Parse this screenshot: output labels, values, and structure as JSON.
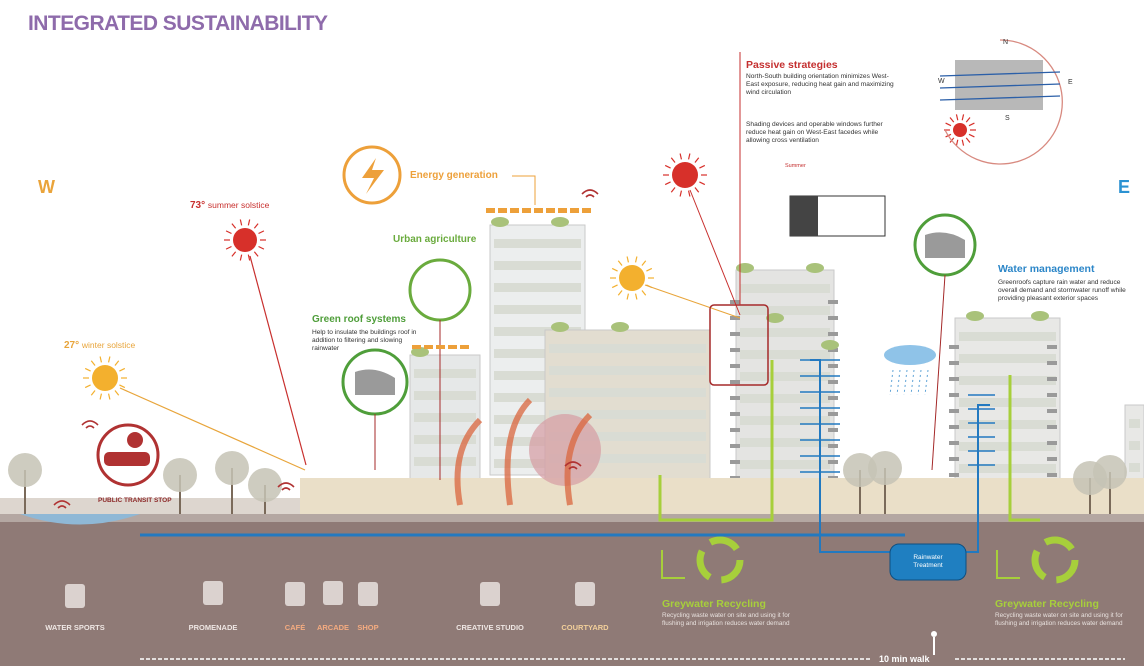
{
  "header": {
    "title": "INTEGRATED SUSTAINABILITY"
  },
  "orientation": {
    "west": "W",
    "east": "E"
  },
  "compass": {
    "north": "N",
    "west": "W",
    "east": "E",
    "south": "S"
  },
  "sun_angles": [
    {
      "degree": "73°",
      "label": "summer solstice"
    },
    {
      "degree": "27°",
      "label": "winter solstice"
    }
  ],
  "callouts": {
    "energy": {
      "title": "Energy generation"
    },
    "agriculture": {
      "title": "Urban agriculture"
    },
    "green_roof": {
      "title": "Green roof systems",
      "lines": [
        "Help to insulate the buildings roof in",
        "addition to filtering and slowing",
        "rainwater"
      ]
    },
    "passive": {
      "title": "Passive strategies",
      "paragraph_1": [
        "North-South building orientation minimizes West-",
        "East exposure, reducing heat gain and maximizing",
        "wind circulation"
      ],
      "paragraph_2": [
        "Shading devices and operable windows further",
        "reduce heat gain on West-East facedes while",
        "allowing cross ventilation"
      ],
      "section_label": "Summer"
    },
    "water": {
      "title": "Water management",
      "lines": [
        "Greenroofs capture rain water and reduce",
        "overall demand and stormwater runoff while",
        "providing pleasant exterior spaces"
      ]
    },
    "transit": {
      "title": "PUBLIC TRANSIT STOP"
    },
    "rainwater": {
      "lines": [
        "Rainwater",
        "Treatment"
      ]
    },
    "greywater": [
      {
        "title": "Greywater Recycling",
        "lines": [
          "Recycling waste water on site and using it for",
          "flushing and irrigation reduces water demand"
        ]
      },
      {
        "title": "Greywater Recycling",
        "lines": [
          "Recycling waste water on site and using it for",
          "flushing and irrigation reduces water demand"
        ]
      }
    ]
  },
  "facilities": [
    "WATER SPORTS",
    "PROMENADE",
    "CAFÉ",
    "ARCADE",
    "SHOP",
    "CREATIVE STUDIO",
    "COURTYARD"
  ],
  "walk": {
    "label": "10 min walk"
  }
}
